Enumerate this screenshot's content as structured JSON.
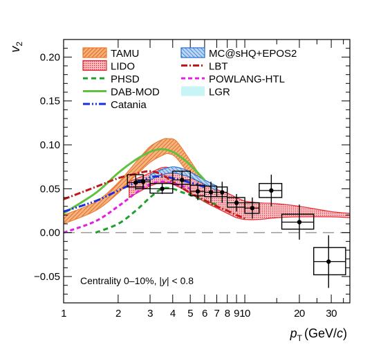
{
  "chart_data": {
    "type": "line",
    "xlabel_main": "p",
    "xlabel_sub": "T",
    "xlabel_unit": "(GeV/",
    "xlabel_c": "c",
    "xlabel_close": ")",
    "ylabel_main": "v",
    "ylabel_sub": "2",
    "x_scale": "log",
    "xlim": [
      1,
      38
    ],
    "ylim": [
      -0.08,
      0.22
    ],
    "x_ticks": [
      {
        "v": 1,
        "label": "1"
      },
      {
        "v": 2,
        "label": "2"
      },
      {
        "v": 3,
        "label": "3"
      },
      {
        "v": 4,
        "label": "4"
      },
      {
        "v": 5,
        "label": "5"
      },
      {
        "v": 6,
        "label": "6"
      },
      {
        "v": 7,
        "label": "7"
      },
      {
        "v": 8,
        "label": "8"
      },
      {
        "v": 9,
        "label": "9"
      },
      {
        "v": 10,
        "label": "10"
      },
      {
        "v": 20,
        "label": "20"
      },
      {
        "v": 30,
        "label": "30"
      }
    ],
    "y_ticks": [
      {
        "v": -0.05,
        "label": "−0.05"
      },
      {
        "v": 0.0,
        "label": "0.00"
      },
      {
        "v": 0.05,
        "label": "0.05"
      },
      {
        "v": 0.1,
        "label": "0.10"
      },
      {
        "v": 0.15,
        "label": "0.15"
      },
      {
        "v": 0.2,
        "label": "0.20"
      }
    ],
    "annotation": {
      "prefix": "Centrality 0–10%, |",
      "var": "y",
      "suffix": "| < 0.8"
    },
    "bands": [
      {
        "name": "TAMU",
        "color": "#e8772e",
        "x": [
          1,
          1.5,
          2,
          2.5,
          3,
          3.5,
          3.8,
          4.2,
          5,
          6,
          7,
          8
        ],
        "low": [
          0.01,
          0.025,
          0.045,
          0.065,
          0.08,
          0.088,
          0.09,
          0.085,
          0.065,
          0.05,
          0.042,
          0.038
        ],
        "high": [
          0.02,
          0.035,
          0.057,
          0.08,
          0.098,
          0.106,
          0.107,
          0.104,
          0.082,
          0.058,
          0.048,
          0.044
        ]
      },
      {
        "name": "LIDO",
        "color": "#e8202a",
        "x": [
          2.3,
          3,
          3.5,
          4,
          5,
          6,
          7,
          8,
          9,
          10,
          12,
          15,
          20,
          30,
          38
        ],
        "low": [
          0.04,
          0.053,
          0.057,
          0.055,
          0.045,
          0.035,
          0.028,
          0.022,
          0.017,
          0.015,
          0.015,
          0.017,
          0.018,
          0.018,
          0.017
        ],
        "high": [
          0.058,
          0.068,
          0.074,
          0.073,
          0.063,
          0.055,
          0.049,
          0.045,
          0.04,
          0.036,
          0.034,
          0.033,
          0.03,
          0.024,
          0.022
        ]
      },
      {
        "name": "MC@sHQ+EPOS2",
        "color": "#1f6fd0",
        "x": [
          3,
          3.5,
          4,
          4.5,
          5,
          6,
          7
        ],
        "low": [
          0.06,
          0.066,
          0.068,
          0.066,
          0.063,
          0.055,
          0.048
        ],
        "high": [
          0.066,
          0.072,
          0.075,
          0.073,
          0.069,
          0.06,
          0.053
        ]
      }
    ],
    "lines": [
      {
        "name": "PHSD",
        "color": "#1fa02c",
        "dash": "7,5",
        "x": [
          1.5,
          2,
          2.5,
          3,
          3.5,
          4,
          4.5,
          5,
          6,
          7
        ],
        "y": [
          0.0,
          0.01,
          0.025,
          0.04,
          0.05,
          0.05,
          0.046,
          0.043,
          0.036,
          0.032
        ]
      },
      {
        "name": "DAB-MOD",
        "color": "#60c040",
        "dash": "",
        "x": [
          1,
          1.5,
          2,
          2.5,
          3,
          3.5,
          4,
          4.5,
          5,
          6
        ],
        "y": [
          0.022,
          0.045,
          0.068,
          0.083,
          0.092,
          0.095,
          0.092,
          0.085,
          0.077,
          0.06
        ]
      },
      {
        "name": "Catania",
        "color": "#1a2ee0",
        "dash": "10,3,2,3,2,3",
        "x": [
          1,
          1.5,
          2,
          2.5,
          3,
          3.4,
          4,
          5,
          6
        ],
        "y": [
          0.024,
          0.036,
          0.048,
          0.057,
          0.063,
          0.064,
          0.062,
          0.057,
          0.052
        ]
      },
      {
        "name": "LBT",
        "color": "#c01818",
        "dash": "9,3,2,3",
        "x": [
          1,
          1.5,
          2,
          2.5,
          3,
          3.5,
          4,
          5,
          6,
          7,
          8,
          9,
          10
        ],
        "y": [
          0.038,
          0.052,
          0.062,
          0.067,
          0.07,
          0.066,
          0.058,
          0.045,
          0.037,
          0.03,
          0.025,
          0.02,
          0.016
        ]
      },
      {
        "name": "POWLANG-HTL",
        "color": "#e020e0",
        "dash": "6,4",
        "x": [
          1,
          1.5,
          2,
          2.5,
          3,
          3.5,
          4,
          5
        ],
        "y": [
          0.0,
          0.013,
          0.03,
          0.045,
          0.055,
          0.058,
          0.056,
          0.05
        ]
      }
    ],
    "legend": [
      {
        "label": "TAMU",
        "kind": "hatch",
        "color": "#e8772e"
      },
      {
        "label": "MC@sHQ+EPOS2",
        "kind": "hatch-blue",
        "color": "#1f6fd0"
      },
      {
        "label": "LIDO",
        "kind": "dots",
        "color": "#e8202a"
      },
      {
        "label": "LBT",
        "kind": "line",
        "color": "#c01818",
        "dash": "9,3,2,3"
      },
      {
        "label": "PHSD",
        "kind": "line",
        "color": "#1fa02c",
        "dash": "7,5"
      },
      {
        "label": "POWLANG-HTL",
        "kind": "line",
        "color": "#e020e0",
        "dash": "6,4"
      },
      {
        "label": "DAB-MOD",
        "kind": "line",
        "color": "#60c040",
        "dash": ""
      },
      {
        "label": "LGR",
        "kind": "fill",
        "color": "#c8f4f6"
      },
      {
        "label": "Catania",
        "kind": "line",
        "color": "#1a2ee0",
        "dash": "10,3,2,3,2,3"
      }
    ],
    "points": [
      {
        "x": 2.5,
        "y": 0.057,
        "stat": 0.008,
        "xlo": 2.25,
        "xhi": 2.75,
        "syslo": 0.052,
        "syshi": 0.066
      },
      {
        "x": 2.75,
        "y": 0.058,
        "stat": 0.008,
        "xlo": 2.5,
        "xhi": 3.0,
        "syslo": 0.05,
        "syshi": 0.06
      },
      {
        "x": 3.5,
        "y": 0.05,
        "stat": 0.006,
        "xlo": 3.0,
        "xhi": 4.0,
        "syslo": 0.045,
        "syshi": 0.056
      },
      {
        "x": 4.5,
        "y": 0.06,
        "stat": 0.01,
        "xlo": 4.0,
        "xhi": 5.0,
        "syslo": 0.055,
        "syshi": 0.07
      },
      {
        "x": 5.5,
        "y": 0.047,
        "stat": 0.01,
        "xlo": 5.0,
        "xhi": 6.0,
        "syslo": 0.042,
        "syshi": 0.054
      },
      {
        "x": 6.5,
        "y": 0.046,
        "stat": 0.012,
        "xlo": 6.0,
        "xhi": 7.0,
        "syslo": 0.041,
        "syshi": 0.053
      },
      {
        "x": 7.5,
        "y": 0.046,
        "stat": 0.012,
        "xlo": 7.0,
        "xhi": 8.0,
        "syslo": 0.041,
        "syshi": 0.052
      },
      {
        "x": 9.0,
        "y": 0.034,
        "stat": 0.01,
        "xlo": 8.0,
        "xhi": 10.0,
        "syslo": 0.029,
        "syshi": 0.04
      },
      {
        "x": 11.0,
        "y": 0.028,
        "stat": 0.012,
        "xlo": 10.0,
        "xhi": 12.0,
        "syslo": 0.022,
        "syshi": 0.034
      },
      {
        "x": 14.0,
        "y": 0.048,
        "stat": 0.018,
        "xlo": 12.0,
        "xhi": 16.0,
        "syslo": 0.04,
        "syshi": 0.056
      },
      {
        "x": 20.0,
        "y": 0.012,
        "stat": 0.02,
        "xlo": 16.0,
        "xhi": 24.0,
        "syslo": 0.004,
        "syshi": 0.021
      },
      {
        "x": 29.0,
        "y": -0.033,
        "stat": 0.03,
        "xlo": 24.0,
        "xhi": 36.0,
        "syslo": -0.048,
        "syshi": -0.017
      }
    ]
  }
}
